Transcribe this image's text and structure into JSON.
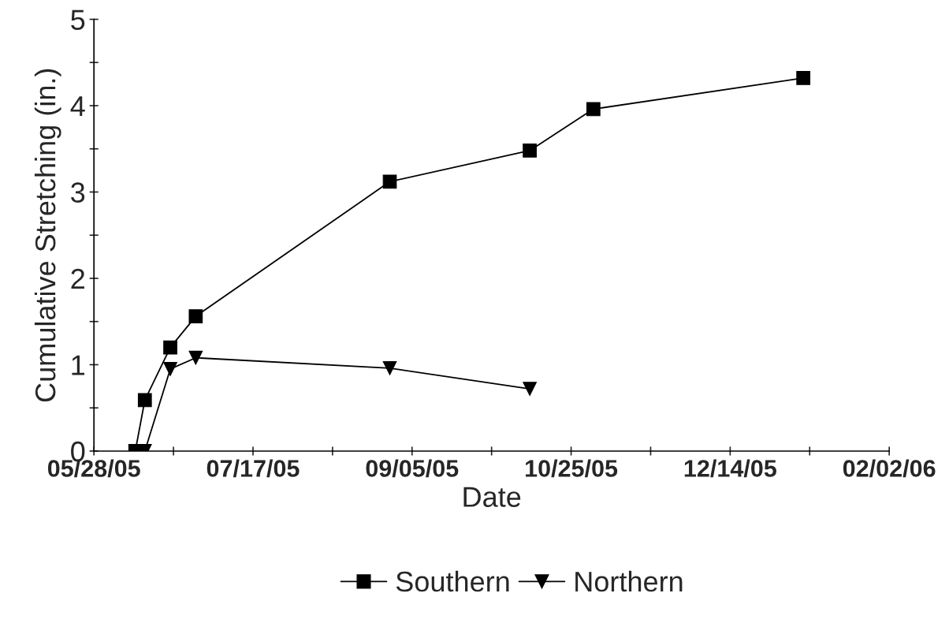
{
  "chart_data": {
    "type": "line",
    "xlabel": "Date",
    "ylabel": "Cumulative Stretching (in.)",
    "xlim": [
      "2005-05-28",
      "2006-02-02"
    ],
    "ylim": [
      0,
      5
    ],
    "xticks": [
      {
        "value": "2005-05-28",
        "label": "05/28/05"
      },
      {
        "value": "2005-06-22",
        "label": null
      },
      {
        "value": "2005-07-17",
        "label": "07/17/05"
      },
      {
        "value": "2005-08-11",
        "label": null
      },
      {
        "value": "2005-09-05",
        "label": "09/05/05"
      },
      {
        "value": "2005-09-30",
        "label": null
      },
      {
        "value": "2005-10-25",
        "label": "10/25/05"
      },
      {
        "value": "2005-11-19",
        "label": null
      },
      {
        "value": "2005-12-14",
        "label": "12/14/05"
      },
      {
        "value": "2006-01-08",
        "label": null
      },
      {
        "value": "2006-02-02",
        "label": "02/02/06"
      }
    ],
    "yticks": [
      0,
      {
        "value": 0.5,
        "label": null
      },
      1,
      {
        "value": 1.5,
        "label": null
      },
      2,
      {
        "value": 2.5,
        "label": null
      },
      3,
      {
        "value": 3.5,
        "label": null
      },
      4,
      {
        "value": 4.5,
        "label": null
      },
      5
    ],
    "grid": false,
    "legend": "bottom",
    "line_style": "solid",
    "series": [
      {
        "name": "Southern",
        "color": "#000000",
        "marker": "square",
        "x": [
          "2005-06-10",
          "2005-06-13",
          "2005-06-21",
          "2005-06-29",
          "2005-08-29",
          "2005-10-12",
          "2005-11-01",
          "2006-01-06"
        ],
        "values": [
          0,
          0.59,
          1.2,
          1.56,
          3.12,
          3.48,
          3.96,
          4.32
        ]
      },
      {
        "name": "Northern",
        "color": "#000000",
        "marker": "triangle_down",
        "x": [
          "2005-06-13",
          "2005-06-21",
          "2005-06-29",
          "2005-08-29",
          "2005-10-12"
        ],
        "values": [
          0,
          0.95,
          1.08,
          0.96,
          0.72
        ]
      }
    ]
  }
}
